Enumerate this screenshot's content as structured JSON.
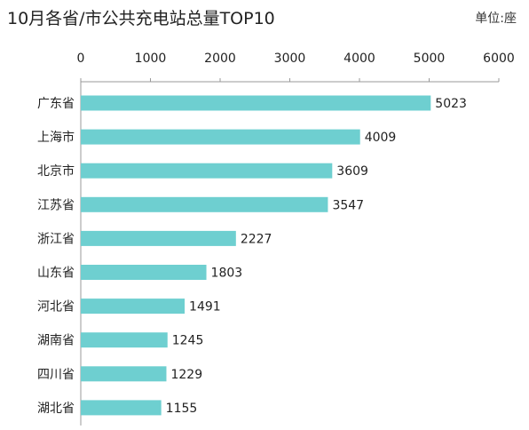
{
  "chart_data": {
    "type": "bar",
    "orientation": "horizontal",
    "title": "10月各省/市公共充电站总量TOP10",
    "unit": "单位:座",
    "categories": [
      "广东省",
      "上海市",
      "北京市",
      "江苏省",
      "浙江省",
      "山东省",
      "河北省",
      "湖南省",
      "四川省",
      "湖北省"
    ],
    "values": [
      5023,
      4009,
      3609,
      3547,
      2227,
      1803,
      1491,
      1245,
      1229,
      1155
    ],
    "xlim": [
      0,
      6000
    ],
    "xticks": [
      0,
      1000,
      2000,
      3000,
      4000,
      5000,
      6000
    ],
    "axis_position": "top",
    "grid": false,
    "legend": "none",
    "bar_color": "#6ECFD0",
    "axis_color": "#999999"
  }
}
